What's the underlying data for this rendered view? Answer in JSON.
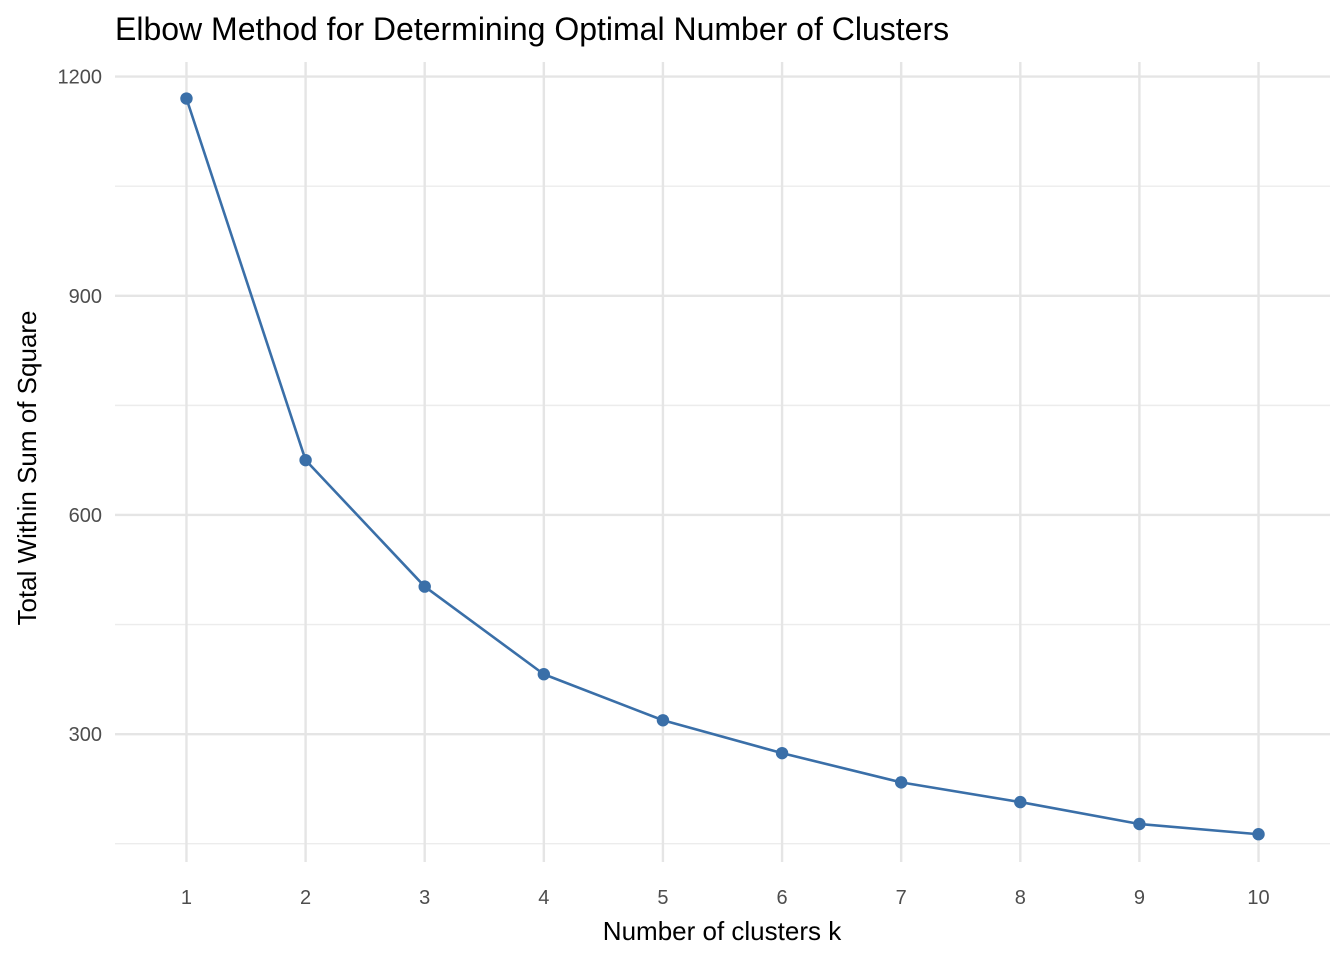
{
  "chart_data": {
    "type": "line",
    "title": "Elbow Method for Determining Optimal Number of Clusters",
    "xlabel": "Number of clusters k",
    "ylabel": "Total Within Sum of Square",
    "x": [
      1,
      2,
      3,
      4,
      5,
      6,
      7,
      8,
      9,
      10
    ],
    "x_tick_labels": [
      "1",
      "2",
      "3",
      "4",
      "5",
      "6",
      "7",
      "8",
      "9",
      "10"
    ],
    "y_ticks": [
      300,
      600,
      900,
      1200
    ],
    "y_tick_labels": [
      "300",
      "600",
      "900",
      "1200"
    ],
    "y_minor_ticks": [
      150,
      450,
      750,
      1050
    ],
    "xlim": [
      0.4,
      10.6
    ],
    "ylim": [
      125,
      1220
    ],
    "grid": true,
    "legend": "none",
    "series": [
      {
        "color": "#3a6fa8",
        "marker": "circle",
        "values": [
          1170,
          675,
          502,
          382,
          319,
          274,
          234,
          207,
          177,
          163
        ]
      }
    ]
  }
}
